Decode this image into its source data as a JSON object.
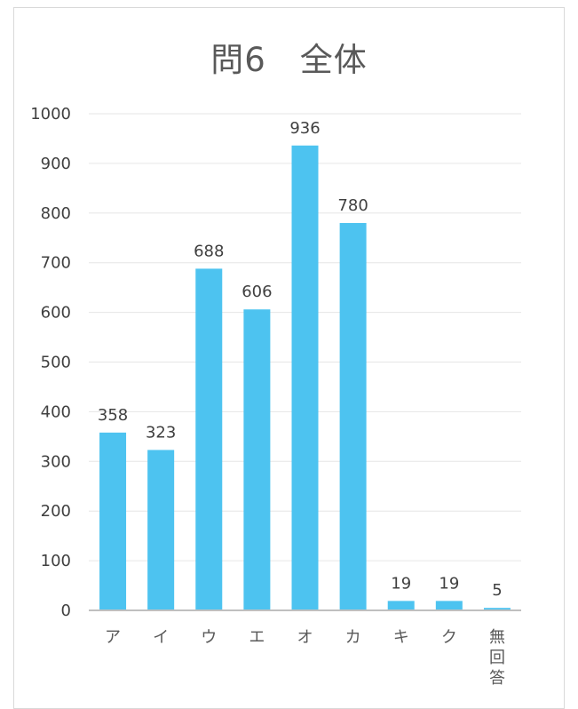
{
  "chart_data": {
    "type": "bar",
    "title": "問6　全体",
    "categories": [
      "ア",
      "イ",
      "ウ",
      "エ",
      "オ",
      "カ",
      "キ",
      "ク",
      "無回答"
    ],
    "values": [
      358,
      323,
      688,
      606,
      936,
      780,
      19,
      19,
      5
    ],
    "ylim": [
      0,
      1000
    ],
    "yticks": [
      0,
      100,
      200,
      300,
      400,
      500,
      600,
      700,
      800,
      900,
      1000
    ],
    "grid": true,
    "legend": "none",
    "colors": {
      "bar": "#4dc3f0",
      "grid": "#e6e6e6",
      "axis": "#bfbfbf"
    }
  }
}
